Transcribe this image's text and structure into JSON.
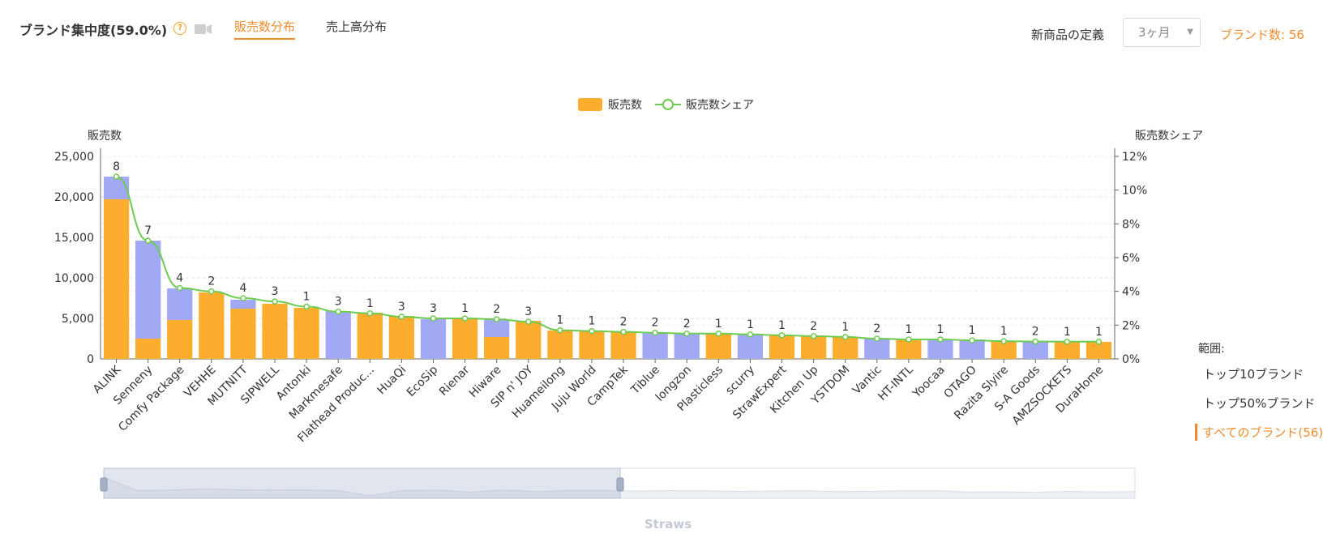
{
  "header": {
    "title": "ブランド集中度(59.0%)",
    "tabs": [
      {
        "label": "販売数分布",
        "active": true
      },
      {
        "label": "売上高分布",
        "active": false
      }
    ],
    "definition_label": "新商品の定義",
    "definition_value": "3ヶ月",
    "brand_count_label": "ブランド数: 56"
  },
  "range_panel": {
    "title": "範囲:",
    "options": [
      {
        "label": "トップ10ブランド",
        "active": false
      },
      {
        "label": "トップ50%ブランド",
        "active": false
      },
      {
        "label": "すべてのブランド(56)",
        "active": true
      }
    ]
  },
  "footer": {
    "label": "Straws"
  },
  "colors": {
    "orange": "#FDAD2D",
    "purple": "#A1A9F5",
    "line": "#6DCB4F",
    "accent": "#F08C2E"
  },
  "chart_data": {
    "type": "bar",
    "legend": [
      "販売数",
      "販売数シェア"
    ],
    "ylabel_left": "販売数",
    "ylabel_right": "販売数シェア",
    "ylim_left": [
      0,
      25000
    ],
    "ylim_right": [
      0,
      12
    ],
    "left_ticks": [
      "0",
      "5,000",
      "10,000",
      "15,000",
      "20,000",
      "25,000"
    ],
    "right_ticks": [
      "0%",
      "2%",
      "4%",
      "6%",
      "8%",
      "10%",
      "12%"
    ],
    "categories": [
      "ALINK",
      "Senneny",
      "Comfy Package",
      "VEHHE",
      "MUTNITT",
      "SIPWELL",
      "Antonki",
      "Markmesafe",
      "Flathead Produc...",
      "HuaQi",
      "EcoSip",
      "Rienar",
      "Hiware",
      "SIP n' JOY",
      "Huameilong",
      "Juju World",
      "CampTek",
      "Tiblue",
      "longzon",
      "Plasticless",
      "scurry",
      "StrawExpert",
      "Kitchen Up",
      "YSTDOM",
      "Vantic",
      "HT-INTL",
      "Yoocaa",
      "OTAGO",
      "Razita Slyire",
      "S-A Goods",
      "AMZSOCKETS",
      "DuraHome"
    ],
    "series": [
      {
        "name": "販売数 (orange)",
        "values": [
          19700,
          2500,
          4800,
          8200,
          6200,
          6800,
          6300,
          0,
          5700,
          5300,
          0,
          4900,
          2700,
          4700,
          3500,
          3400,
          3300,
          0,
          0,
          3100,
          0,
          2900,
          2800,
          2700,
          0,
          2400,
          0,
          0,
          2200,
          0,
          2100,
          2100
        ]
      },
      {
        "name": "販売数 (purple)",
        "values": [
          2800,
          12100,
          3900,
          0,
          1100,
          0,
          0,
          5900,
          0,
          0,
          4900,
          0,
          2200,
          0,
          0,
          0,
          0,
          3200,
          3200,
          0,
          3000,
          0,
          0,
          0,
          2500,
          0,
          2400,
          2400,
          0,
          2100,
          0,
          0
        ]
      },
      {
        "name": "販売数シェア",
        "values": [
          10.8,
          7.0,
          4.2,
          4.0,
          3.6,
          3.4,
          3.1,
          2.8,
          2.7,
          2.5,
          2.4,
          2.4,
          2.35,
          2.2,
          1.7,
          1.65,
          1.6,
          1.55,
          1.5,
          1.5,
          1.45,
          1.4,
          1.35,
          1.3,
          1.2,
          1.15,
          1.15,
          1.1,
          1.05,
          1.03,
          1.02,
          1.02
        ]
      }
    ],
    "data_labels": [
      "8",
      "7",
      "4",
      "2",
      "4",
      "3",
      "1",
      "3",
      "1",
      "3",
      "3",
      "1",
      "2",
      "3",
      "1",
      "1",
      "2",
      "2",
      "2",
      "1",
      "1",
      "1",
      "2",
      "1",
      "2",
      "1",
      "1",
      "1",
      "1",
      "2",
      "1",
      "1"
    ],
    "overview_series": [
      8.2,
      3.0,
      3.2,
      3.6,
      3.3,
      3.2,
      3.3,
      3.0,
      1.0,
      3.0,
      3.2,
      2.4,
      3.2,
      2.6,
      3.0,
      3.0,
      2.8,
      3.0,
      2.9,
      2.7,
      2.8,
      3.0,
      2.6,
      2.7,
      2.9,
      3.0,
      2.4,
      2.5,
      2.3,
      2.7,
      2.5,
      2.6
    ]
  }
}
